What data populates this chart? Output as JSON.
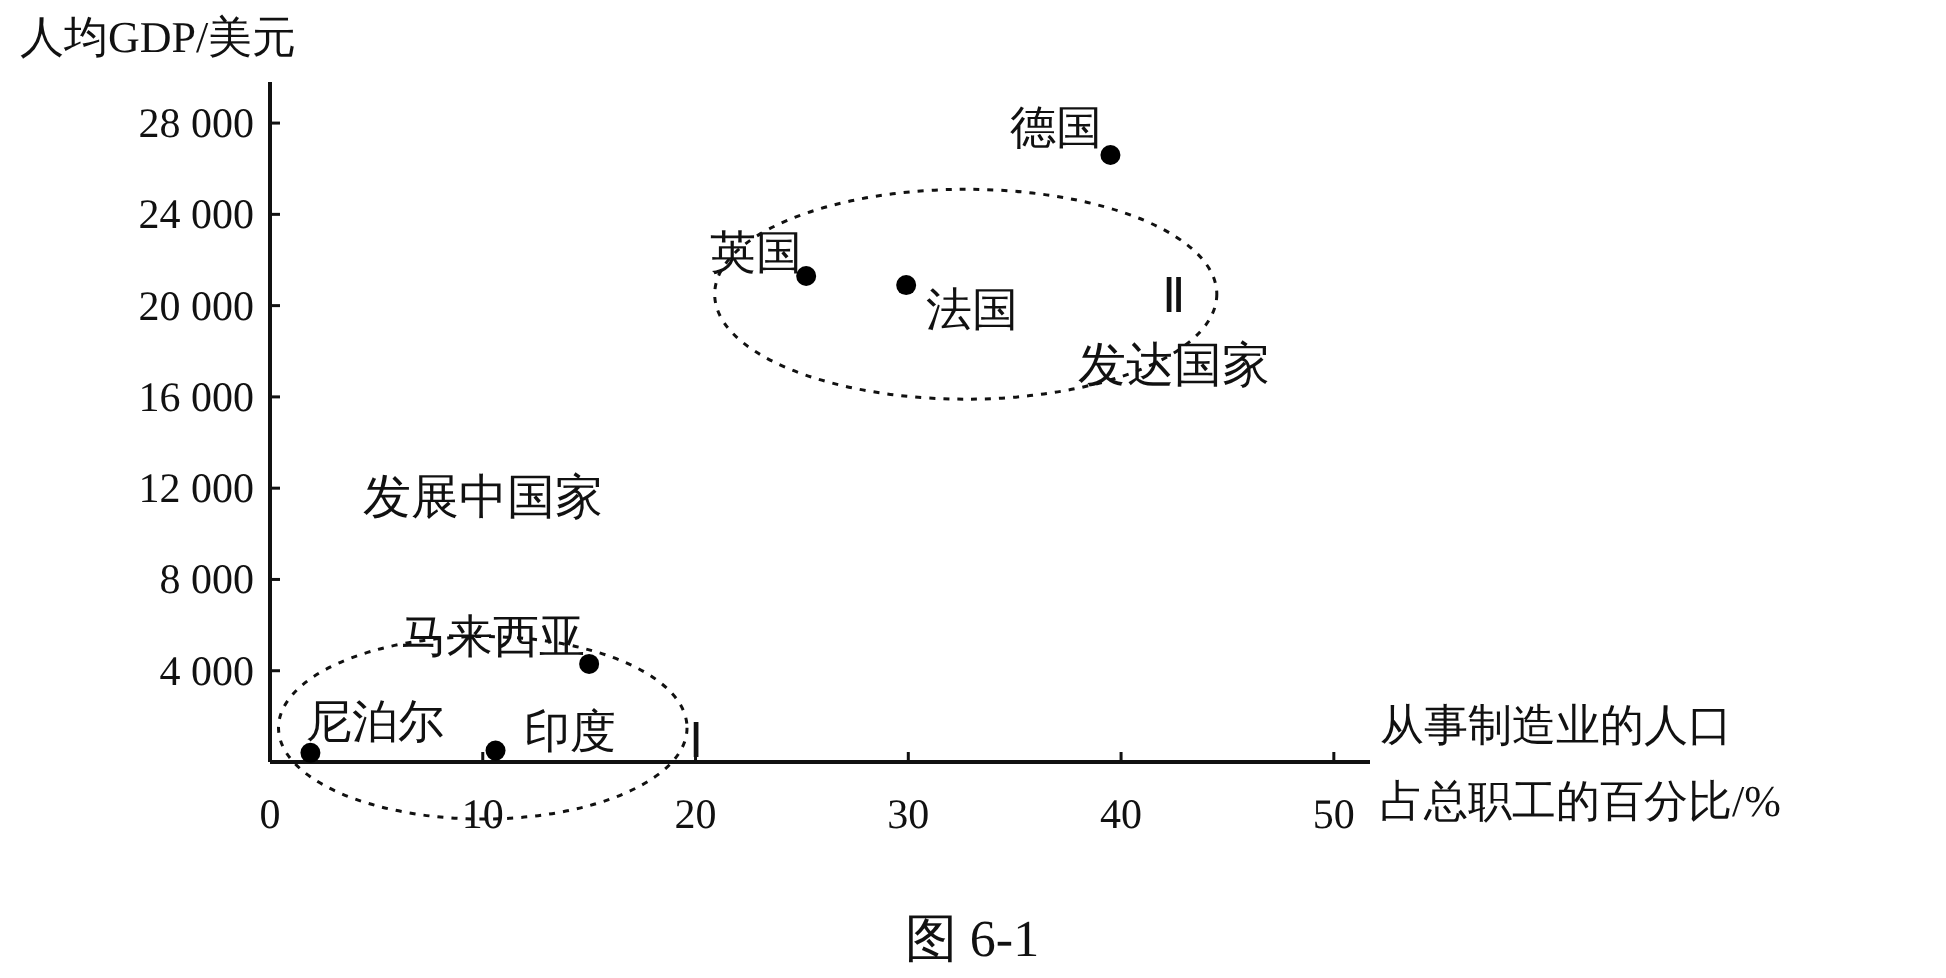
{
  "chart_data": {
    "type": "scatter",
    "title": "图 6-1",
    "xlabel": "从事制造业的人口占总职工的百分比/%",
    "ylabel": "人均GDP/美元",
    "xlim": [
      0,
      51.7
    ],
    "ylim": [
      0,
      29800
    ],
    "xticks": [
      0,
      10,
      20,
      30,
      40,
      50
    ],
    "yticks": [
      {
        "value": 4000,
        "label": "4 000"
      },
      {
        "value": 8000,
        "label": "8 000"
      },
      {
        "value": 12000,
        "label": "12 000"
      },
      {
        "value": 16000,
        "label": "16 000"
      },
      {
        "value": 20000,
        "label": "20 000"
      },
      {
        "value": 24000,
        "label": "24 000"
      },
      {
        "value": 28000,
        "label": "28 000"
      }
    ],
    "marker": "circle",
    "series": [
      {
        "name": "尼泊尔",
        "color": "#000000",
        "x": [
          1.9
        ],
        "values": [
          400
        ]
      },
      {
        "name": "印度",
        "color": "#000000",
        "x": [
          10.6
        ],
        "values": [
          500
        ]
      },
      {
        "name": "马来西亚",
        "color": "#000000",
        "x": [
          15
        ],
        "values": [
          4300
        ]
      },
      {
        "name": "英国",
        "color": "#000000",
        "x": [
          25.2
        ],
        "values": [
          21300
        ]
      },
      {
        "name": "法国",
        "color": "#000000",
        "x": [
          29.9
        ],
        "values": [
          20900
        ]
      },
      {
        "name": "德国",
        "color": "#000000",
        "x": [
          39.5
        ],
        "values": [
          26600
        ]
      }
    ],
    "annotations": [
      "发展中国家",
      "Ⅰ",
      "Ⅱ",
      "发达国家"
    ]
  }
}
